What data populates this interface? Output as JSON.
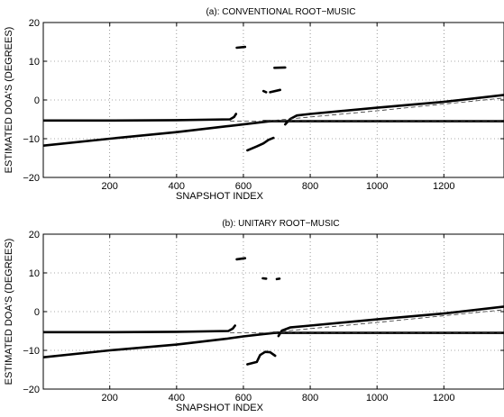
{
  "chart_data": [
    {
      "type": "scatter",
      "title": "(a): CONVENTIONAL ROOT−MUSIC",
      "xlabel": "SNAPSHOT INDEX",
      "ylabel": "ESTIMATED DOA'S (DEGREES)",
      "xlim": [
        1,
        1380
      ],
      "ylim": [
        -20,
        20
      ],
      "xticks": [
        200,
        400,
        600,
        800,
        1000,
        1200
      ],
      "xtick_labels": [
        "200",
        "400",
        "600",
        "800",
        "1000",
        "1200"
      ],
      "yticks": [
        -20,
        -10,
        0,
        10,
        20
      ],
      "ytick_labels": [
        "−20",
        "−10",
        "0",
        "10",
        "20"
      ],
      "grid": true,
      "series": [
        {
          "style": "estimate",
          "points": [
            [
              1,
              -5.3
            ],
            [
              200,
              -5.3
            ],
            [
              400,
              -5.2
            ],
            [
              560,
              -5.0
            ],
            [
              572,
              -4.4
            ],
            [
              578,
              -3.6
            ]
          ]
        },
        {
          "style": "estimate",
          "points": [
            [
              660,
              -5.5
            ],
            [
              800,
              -5.5
            ],
            [
              1000,
              -5.5
            ],
            [
              1200,
              -5.5
            ],
            [
              1380,
              -5.5
            ]
          ]
        },
        {
          "style": "estimate",
          "points": [
            [
              1,
              -11.8
            ],
            [
              200,
              -10.0
            ],
            [
              400,
              -8.3
            ],
            [
              550,
              -6.8
            ],
            [
              580,
              -6.5
            ],
            [
              620,
              -6.1
            ],
            [
              680,
              -5.5
            ]
          ]
        },
        {
          "style": "estimate",
          "points": [
            [
              725,
              -6.3
            ],
            [
              740,
              -4.9
            ],
            [
              760,
              -4.0
            ],
            [
              800,
              -3.6
            ],
            [
              1000,
              -2.0
            ],
            [
              1200,
              -0.5
            ],
            [
              1380,
              1.3
            ]
          ]
        },
        {
          "style": "estimate",
          "points": [
            [
              580,
              13.5
            ],
            [
              605,
              13.7
            ]
          ]
        },
        {
          "style": "estimate",
          "points": [
            [
              693,
              8.3
            ],
            [
              725,
              8.4
            ]
          ]
        },
        {
          "style": "estimate",
          "points": [
            [
              660,
              2.3
            ],
            [
              668,
              2.0
            ]
          ]
        },
        {
          "style": "estimate",
          "points": [
            [
              680,
              2.0
            ],
            [
              710,
              2.6
            ]
          ]
        },
        {
          "style": "estimate",
          "points": [
            [
              612,
              -13.0
            ],
            [
              640,
              -12.0
            ],
            [
              660,
              -11.2
            ],
            [
              675,
              -10.3
            ],
            [
              690,
              -9.8
            ]
          ]
        },
        {
          "style": "true",
          "points": [
            [
              560,
              -5.5
            ],
            [
              1380,
              -5.5
            ]
          ]
        },
        {
          "style": "true",
          "points": [
            [
              650,
              -5.6
            ],
            [
              1000,
              -2.8
            ],
            [
              1380,
              0.5
            ]
          ]
        }
      ]
    },
    {
      "type": "scatter",
      "title": "(b): UNITARY ROOT−MUSIC",
      "xlabel": "SNAPSHOT INDEX",
      "ylabel": "ESTIMATED DOA'S (DEGREES)",
      "xlim": [
        1,
        1380
      ],
      "ylim": [
        -20,
        20
      ],
      "xticks": [
        200,
        400,
        600,
        800,
        1000,
        1200
      ],
      "xtick_labels": [
        "200",
        "400",
        "600",
        "800",
        "1000",
        "1200"
      ],
      "yticks": [
        -20,
        -10,
        0,
        10,
        20
      ],
      "ytick_labels": [
        "−20",
        "−10",
        "0",
        "10",
        "20"
      ],
      "grid": true,
      "series": [
        {
          "style": "estimate",
          "points": [
            [
              1,
              -5.3
            ],
            [
              200,
              -5.3
            ],
            [
              400,
              -5.2
            ],
            [
              555,
              -5.0
            ],
            [
              568,
              -4.4
            ],
            [
              575,
              -3.6
            ]
          ]
        },
        {
          "style": "estimate",
          "points": [
            [
              690,
              -5.5
            ],
            [
              800,
              -5.5
            ],
            [
              1000,
              -5.5
            ],
            [
              1200,
              -5.5
            ],
            [
              1380,
              -5.5
            ]
          ]
        },
        {
          "style": "estimate",
          "points": [
            [
              1,
              -11.8
            ],
            [
              200,
              -10.0
            ],
            [
              400,
              -8.5
            ],
            [
              550,
              -7.0
            ],
            [
              600,
              -6.4
            ],
            [
              660,
              -5.8
            ],
            [
              695,
              -5.5
            ]
          ]
        },
        {
          "style": "estimate",
          "points": [
            [
              705,
              -6.3
            ],
            [
              715,
              -4.9
            ],
            [
              740,
              -4.1
            ],
            [
              800,
              -3.6
            ],
            [
              1000,
              -2.0
            ],
            [
              1200,
              -0.5
            ],
            [
              1380,
              1.3
            ]
          ]
        },
        {
          "style": "estimate",
          "points": [
            [
              580,
              13.5
            ],
            [
              605,
              13.8
            ]
          ]
        },
        {
          "style": "estimate",
          "points": [
            [
              658,
              8.6
            ],
            [
              668,
              8.5
            ]
          ]
        },
        {
          "style": "estimate",
          "points": [
            [
              700,
              8.4
            ],
            [
              708,
              8.5
            ]
          ]
        },
        {
          "style": "estimate",
          "points": [
            [
              612,
              -13.6
            ],
            [
              640,
              -13.0
            ],
            [
              650,
              -11.2
            ],
            [
              665,
              -10.4
            ],
            [
              680,
              -10.5
            ],
            [
              695,
              -11.4
            ]
          ]
        },
        {
          "style": "true",
          "points": [
            [
              560,
              -5.5
            ],
            [
              1380,
              -5.5
            ]
          ]
        },
        {
          "style": "true",
          "points": [
            [
              650,
              -5.6
            ],
            [
              1000,
              -2.8
            ],
            [
              1380,
              0.5
            ]
          ]
        }
      ]
    }
  ]
}
